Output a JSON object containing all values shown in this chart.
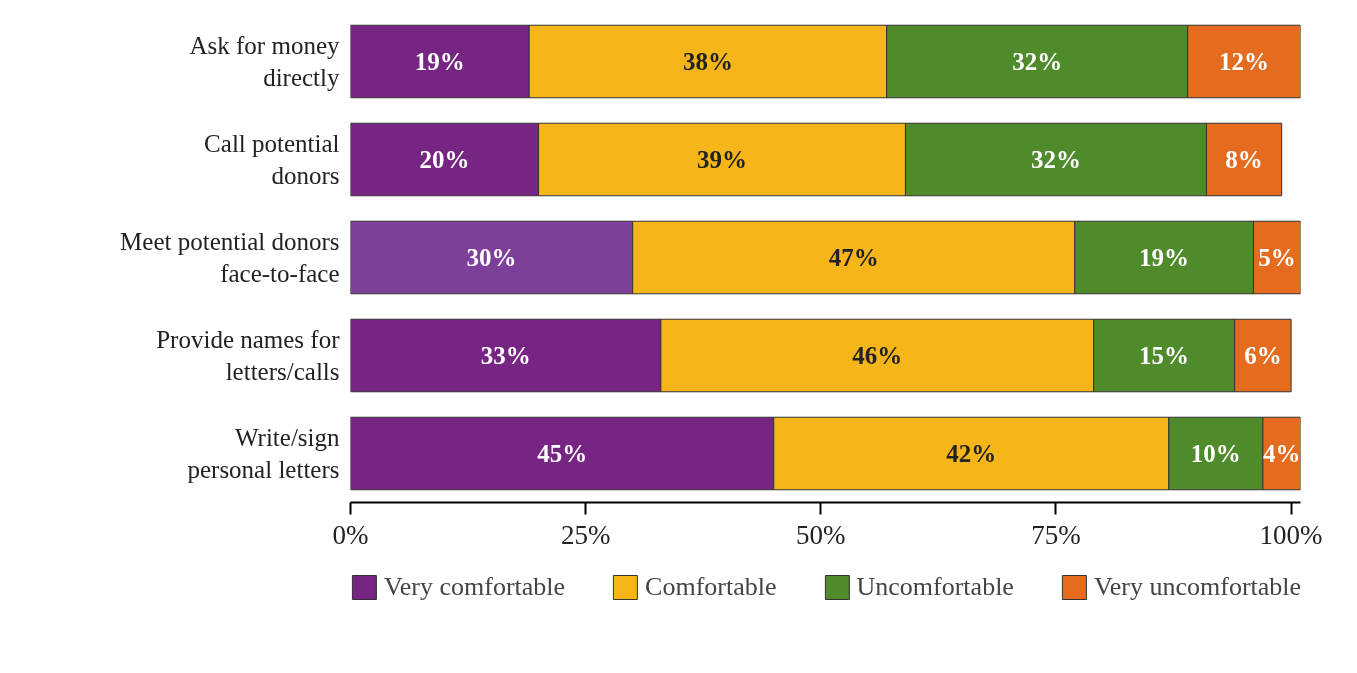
{
  "chart_data": {
    "type": "bar",
    "orientation": "horizontal",
    "stacked": true,
    "categories": [
      "Ask for money\ndirectly",
      "Call potential\ndonors",
      "Meet potential donors\nface-to-face",
      "Provide names for\nletters/calls",
      "Write/sign\npersonal letters"
    ],
    "series": [
      {
        "name": "Very comfortable",
        "color": "#772583",
        "colors": [
          "#772583",
          "#772583",
          "#7e3f9a",
          "#772583",
          "#772583"
        ],
        "values": [
          19,
          20,
          30,
          33,
          45
        ],
        "value_labels": [
          "19%",
          "20%",
          "30%",
          "33%",
          "45%"
        ]
      },
      {
        "name": "Comfortable",
        "color": "#f6b619",
        "values": [
          38,
          39,
          47,
          46,
          42
        ],
        "value_labels": [
          "38%",
          "39%",
          "47%",
          "46%",
          "42%"
        ]
      },
      {
        "name": "Uncomfortable",
        "color": "#4f8a2b",
        "values": [
          32,
          32,
          19,
          15,
          10
        ],
        "value_labels": [
          "32%",
          "32%",
          "19%",
          "15%",
          "10%"
        ]
      },
      {
        "name": "Very uncomfortable",
        "color": "#e56b1f",
        "values": [
          12,
          8,
          5,
          6,
          4
        ],
        "value_labels": [
          "12%",
          "8%",
          "5%",
          "6%",
          "4%"
        ]
      }
    ],
    "xlim": [
      0,
      101
    ],
    "xticks": [
      {
        "value": 0,
        "label": "0%"
      },
      {
        "value": 25,
        "label": "25%"
      },
      {
        "value": 50,
        "label": "50%"
      },
      {
        "value": 75,
        "label": "75%"
      },
      {
        "value": 100,
        "label": "100%"
      }
    ],
    "grid": false,
    "legend": "bottom"
  }
}
